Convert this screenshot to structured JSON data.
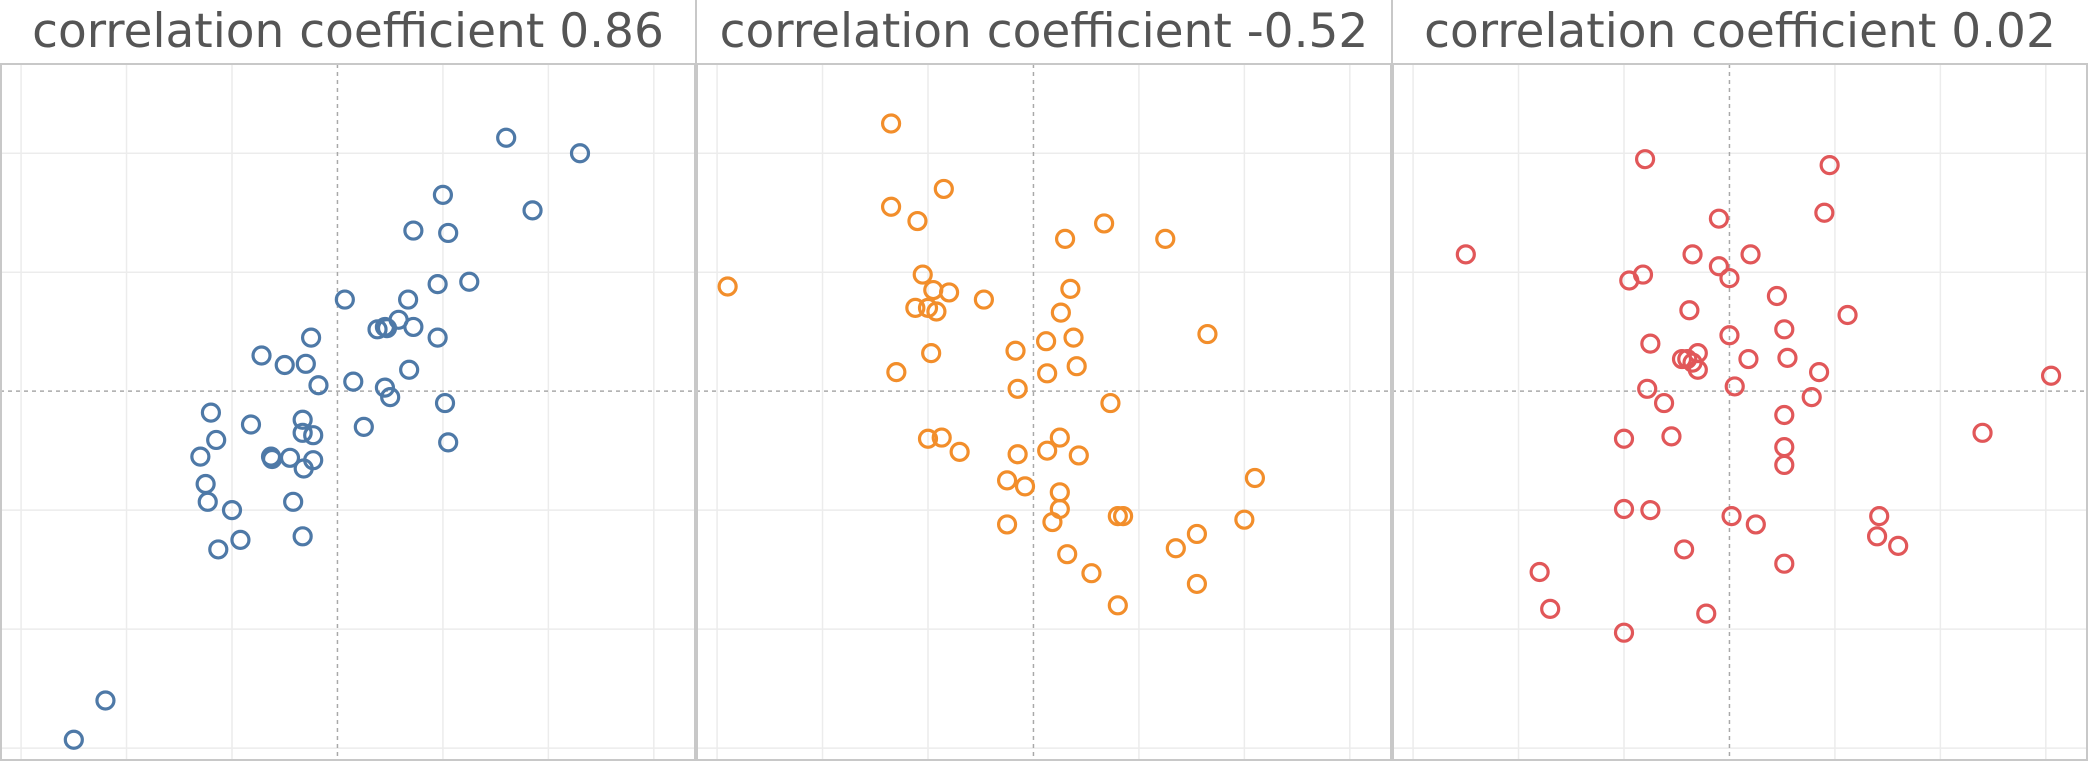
{
  "chart_data": [
    {
      "type": "scatter",
      "title": "correlation coefficient 0.86",
      "color": "#4e79a7",
      "xlim": [
        -3.2,
        3.4
      ],
      "ylim": [
        -3.1,
        2.75
      ],
      "grid": true,
      "points": [
        {
          "x": -2.5,
          "y": -2.93
        },
        {
          "x": -2.2,
          "y": -2.6
        },
        {
          "x": 1.6,
          "y": 2.13
        },
        {
          "x": 2.3,
          "y": 2.0
        },
        {
          "x": 1.0,
          "y": 1.65
        },
        {
          "x": 1.85,
          "y": 1.52
        },
        {
          "x": 0.72,
          "y": 1.35
        },
        {
          "x": 1.05,
          "y": 1.33
        },
        {
          "x": 1.25,
          "y": 0.92
        },
        {
          "x": 0.95,
          "y": 0.9
        },
        {
          "x": 0.07,
          "y": 0.77
        },
        {
          "x": 0.67,
          "y": 0.77
        },
        {
          "x": 0.58,
          "y": 0.6
        },
        {
          "x": 0.45,
          "y": 0.54
        },
        {
          "x": 0.72,
          "y": 0.54
        },
        {
          "x": 0.38,
          "y": 0.52
        },
        {
          "x": 0.47,
          "y": 0.53
        },
        {
          "x": 0.95,
          "y": 0.45
        },
        {
          "x": -0.25,
          "y": 0.45
        },
        {
          "x": -0.72,
          "y": 0.3
        },
        {
          "x": -0.5,
          "y": 0.22
        },
        {
          "x": -0.3,
          "y": 0.23
        },
        {
          "x": 0.68,
          "y": 0.18
        },
        {
          "x": 0.15,
          "y": 0.08
        },
        {
          "x": -0.18,
          "y": 0.05
        },
        {
          "x": 0.45,
          "y": 0.03
        },
        {
          "x": 0.5,
          "y": -0.05
        },
        {
          "x": 1.02,
          "y": -0.1
        },
        {
          "x": -1.2,
          "y": -0.18
        },
        {
          "x": -0.82,
          "y": -0.28
        },
        {
          "x": -0.33,
          "y": -0.24
        },
        {
          "x": -0.33,
          "y": -0.35
        },
        {
          "x": -0.23,
          "y": -0.37
        },
        {
          "x": 0.25,
          "y": -0.3
        },
        {
          "x": -1.15,
          "y": -0.41
        },
        {
          "x": 1.05,
          "y": -0.43
        },
        {
          "x": -1.3,
          "y": -0.55
        },
        {
          "x": -0.63,
          "y": -0.55
        },
        {
          "x": -0.62,
          "y": -0.57
        },
        {
          "x": -0.45,
          "y": -0.56
        },
        {
          "x": -0.23,
          "y": -0.58
        },
        {
          "x": -0.32,
          "y": -0.65
        },
        {
          "x": -1.25,
          "y": -0.78
        },
        {
          "x": -1.23,
          "y": -0.93
        },
        {
          "x": -1.0,
          "y": -1.0
        },
        {
          "x": -0.42,
          "y": -0.93
        },
        {
          "x": -0.92,
          "y": -1.25
        },
        {
          "x": -1.13,
          "y": -1.33
        },
        {
          "x": -0.33,
          "y": -1.22
        }
      ]
    },
    {
      "type": "scatter",
      "title": "correlation coefficient -0.52",
      "color": "#f28e2b",
      "xlim": [
        -3.2,
        3.4
      ],
      "ylim": [
        -3.1,
        2.75
      ],
      "grid": true,
      "points": [
        {
          "x": -1.35,
          "y": 2.25
        },
        {
          "x": -2.9,
          "y": 0.88
        },
        {
          "x": -0.85,
          "y": 1.7
        },
        {
          "x": -1.35,
          "y": 1.55
        },
        {
          "x": -1.1,
          "y": 1.43
        },
        {
          "x": 0.3,
          "y": 1.28
        },
        {
          "x": 0.67,
          "y": 1.41
        },
        {
          "x": 1.25,
          "y": 1.28
        },
        {
          "x": -1.05,
          "y": 0.98
        },
        {
          "x": -0.95,
          "y": 0.85
        },
        {
          "x": -0.8,
          "y": 0.83
        },
        {
          "x": -0.47,
          "y": 0.77
        },
        {
          "x": 0.35,
          "y": 0.86
        },
        {
          "x": -1.12,
          "y": 0.7
        },
        {
          "x": -1.0,
          "y": 0.7
        },
        {
          "x": -0.92,
          "y": 0.67
        },
        {
          "x": 0.26,
          "y": 0.66
        },
        {
          "x": 1.65,
          "y": 0.48
        },
        {
          "x": 0.38,
          "y": 0.45
        },
        {
          "x": 0.12,
          "y": 0.42
        },
        {
          "x": -0.17,
          "y": 0.34
        },
        {
          "x": -0.97,
          "y": 0.32
        },
        {
          "x": 0.41,
          "y": 0.21
        },
        {
          "x": 0.13,
          "y": 0.15
        },
        {
          "x": -1.3,
          "y": 0.16
        },
        {
          "x": -0.15,
          "y": 0.02
        },
        {
          "x": 0.73,
          "y": -0.1
        },
        {
          "x": -1.0,
          "y": -0.4
        },
        {
          "x": -0.87,
          "y": -0.39
        },
        {
          "x": 0.25,
          "y": -0.39
        },
        {
          "x": -0.7,
          "y": -0.51
        },
        {
          "x": -0.15,
          "y": -0.53
        },
        {
          "x": 0.13,
          "y": -0.5
        },
        {
          "x": 0.43,
          "y": -0.54
        },
        {
          "x": -0.25,
          "y": -0.75
        },
        {
          "x": -0.08,
          "y": -0.8
        },
        {
          "x": 2.1,
          "y": -0.73
        },
        {
          "x": 0.25,
          "y": -0.85
        },
        {
          "x": 0.25,
          "y": -0.99
        },
        {
          "x": 0.8,
          "y": -1.05
        },
        {
          "x": 0.85,
          "y": -1.05
        },
        {
          "x": -0.25,
          "y": -1.12
        },
        {
          "x": 0.18,
          "y": -1.1
        },
        {
          "x": 2.0,
          "y": -1.08
        },
        {
          "x": 1.55,
          "y": -1.2
        },
        {
          "x": 1.35,
          "y": -1.32
        },
        {
          "x": 0.32,
          "y": -1.37
        },
        {
          "x": 0.55,
          "y": -1.53
        },
        {
          "x": 1.55,
          "y": -1.62
        },
        {
          "x": 0.8,
          "y": -1.8
        }
      ]
    },
    {
      "type": "scatter",
      "title": "correlation coefficient 0.02",
      "color": "#e15759",
      "xlim": [
        -3.2,
        3.4
      ],
      "ylim": [
        -3.1,
        2.75
      ],
      "grid": true,
      "points": [
        {
          "x": -0.8,
          "y": 1.95
        },
        {
          "x": 0.95,
          "y": 1.9
        },
        {
          "x": 0.9,
          "y": 1.5
        },
        {
          "x": -0.1,
          "y": 1.45
        },
        {
          "x": -2.5,
          "y": 1.15
        },
        {
          "x": -0.35,
          "y": 1.15
        },
        {
          "x": 0.2,
          "y": 1.15
        },
        {
          "x": -0.1,
          "y": 1.05
        },
        {
          "x": 0.0,
          "y": 0.95
        },
        {
          "x": -0.82,
          "y": 0.98
        },
        {
          "x": -0.95,
          "y": 0.93
        },
        {
          "x": 0.45,
          "y": 0.8
        },
        {
          "x": -0.38,
          "y": 0.68
        },
        {
          "x": 1.12,
          "y": 0.64
        },
        {
          "x": 0.52,
          "y": 0.52
        },
        {
          "x": 0.0,
          "y": 0.47
        },
        {
          "x": -0.75,
          "y": 0.4
        },
        {
          "x": -0.3,
          "y": 0.32
        },
        {
          "x": 0.18,
          "y": 0.27
        },
        {
          "x": 0.55,
          "y": 0.28
        },
        {
          "x": -0.45,
          "y": 0.27
        },
        {
          "x": -0.35,
          "y": 0.24
        },
        {
          "x": -0.4,
          "y": 0.27
        },
        {
          "x": -0.3,
          "y": 0.18
        },
        {
          "x": 0.85,
          "y": 0.16
        },
        {
          "x": 3.05,
          "y": 0.13
        },
        {
          "x": 0.05,
          "y": 0.04
        },
        {
          "x": -0.78,
          "y": 0.02
        },
        {
          "x": 0.78,
          "y": -0.05
        },
        {
          "x": -0.62,
          "y": -0.1
        },
        {
          "x": 0.52,
          "y": -0.2
        },
        {
          "x": 2.4,
          "y": -0.35
        },
        {
          "x": -1.0,
          "y": -0.4
        },
        {
          "x": -0.55,
          "y": -0.38
        },
        {
          "x": 0.52,
          "y": -0.47
        },
        {
          "x": 0.52,
          "y": -0.62
        },
        {
          "x": -1.0,
          "y": -0.99
        },
        {
          "x": -0.75,
          "y": -1.0
        },
        {
          "x": 0.02,
          "y": -1.05
        },
        {
          "x": 0.25,
          "y": -1.12
        },
        {
          "x": 1.42,
          "y": -1.05
        },
        {
          "x": 1.4,
          "y": -1.22
        },
        {
          "x": 1.6,
          "y": -1.3
        },
        {
          "x": -0.43,
          "y": -1.33
        },
        {
          "x": 0.52,
          "y": -1.45
        },
        {
          "x": -1.8,
          "y": -1.52
        },
        {
          "x": -1.7,
          "y": -1.83
        },
        {
          "x": -0.22,
          "y": -1.87
        },
        {
          "x": -1.0,
          "y": -2.03
        }
      ]
    }
  ]
}
